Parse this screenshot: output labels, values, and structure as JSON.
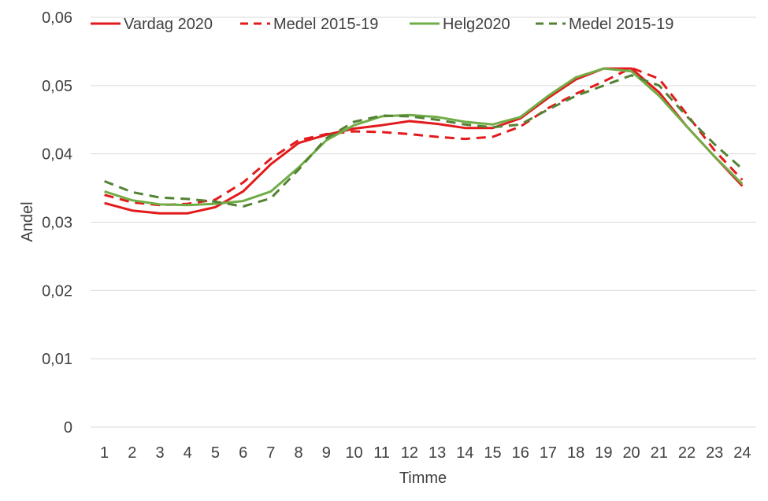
{
  "chart_data": {
    "type": "line",
    "title": "",
    "xlabel": "Timme",
    "ylabel": "Andel",
    "categories": [
      "1",
      "2",
      "3",
      "4",
      "5",
      "6",
      "7",
      "8",
      "9",
      "10",
      "11",
      "12",
      "13",
      "14",
      "15",
      "16",
      "17",
      "18",
      "19",
      "20",
      "21",
      "22",
      "23",
      "24"
    ],
    "y_ticks": [
      "0",
      "0,01",
      "0,02",
      "0,03",
      "0,04",
      "0,05",
      "0,06"
    ],
    "ylim": [
      0,
      0.06
    ],
    "grid": "horizontal",
    "legend": "top",
    "series": [
      {
        "name": "Vardag 2020",
        "color": "#e31a1c",
        "dash": "solid",
        "values": [
          0.0328,
          0.0317,
          0.0313,
          0.0313,
          0.0322,
          0.0345,
          0.0385,
          0.0416,
          0.0428,
          0.0437,
          0.0442,
          0.0448,
          0.0444,
          0.0438,
          0.0438,
          0.0452,
          0.0482,
          0.0509,
          0.0525,
          0.0525,
          0.049,
          0.044,
          0.0396,
          0.0353
        ]
      },
      {
        "name": "Medel 2015-19",
        "color": "#e31a1c",
        "dash": "dashed",
        "values": [
          0.034,
          0.0329,
          0.0325,
          0.0327,
          0.0333,
          0.0358,
          0.0393,
          0.042,
          0.0429,
          0.0433,
          0.0432,
          0.0429,
          0.0425,
          0.0422,
          0.0425,
          0.044,
          0.0467,
          0.0488,
          0.0506,
          0.0526,
          0.051,
          0.0458,
          0.0405,
          0.0362
        ]
      },
      {
        "name": "Helg2020",
        "color": "#70ad47",
        "dash": "solid",
        "values": [
          0.0345,
          0.0332,
          0.0326,
          0.0325,
          0.0327,
          0.0331,
          0.0345,
          0.038,
          0.042,
          0.0442,
          0.0455,
          0.0457,
          0.0454,
          0.0447,
          0.0443,
          0.0454,
          0.0485,
          0.0512,
          0.0525,
          0.0521,
          0.0485,
          0.044,
          0.0396,
          0.0356
        ]
      },
      {
        "name": "Medel 2015-19",
        "color": "#548235",
        "dash": "dashed",
        "values": [
          0.036,
          0.0344,
          0.0336,
          0.0334,
          0.033,
          0.0323,
          0.0335,
          0.0377,
          0.0423,
          0.0447,
          0.0456,
          0.0455,
          0.045,
          0.0443,
          0.0439,
          0.0443,
          0.0465,
          0.0485,
          0.05,
          0.0515,
          0.05,
          0.0455,
          0.0414,
          0.0378
        ]
      }
    ]
  }
}
